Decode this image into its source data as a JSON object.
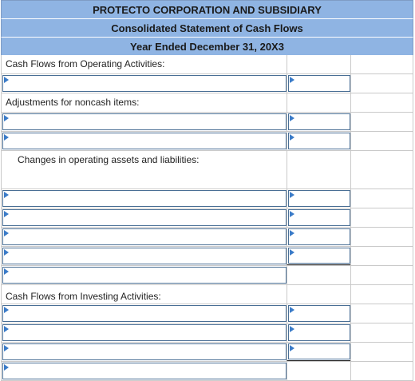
{
  "header": {
    "company": "PROTECTO CORPORATION AND SUBSIDIARY",
    "statement": "Consolidated Statement of Cash Flows",
    "period": "Year Ended December 31, 20X3"
  },
  "labels": {
    "operating": "Cash Flows from Operating Activities:",
    "adjustments": "Adjustments for noncash items:",
    "changes": "Changes in operating assets and liabilities:",
    "investing": "Cash Flows from Investing Activities:"
  },
  "colors": {
    "header_bg": "#8fb4e3",
    "input_border": "#4a6f95",
    "dropdown_marker": "#3a7bc8"
  }
}
